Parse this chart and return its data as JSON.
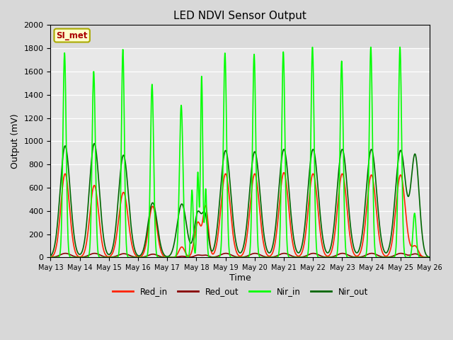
{
  "title": "LED NDVI Sensor Output",
  "xlabel": "Time",
  "ylabel": "Output (mV)",
  "ylim": [
    0,
    2000
  ],
  "xlim": [
    0,
    13
  ],
  "background_color": "#d8d8d8",
  "plot_bg_color": "#e8e8e8",
  "annotation_text": "SI_met",
  "annotation_bg": "#ffffcc",
  "annotation_border": "#aaaa00",
  "annotation_text_color": "#aa0000",
  "x_tick_labels": [
    "May 13",
    "May 14",
    "May 15",
    "May 16",
    "May 17",
    "May 18",
    "May 19",
    "May 20",
    "May 21",
    "May 22",
    "May 23",
    "May 24",
    "May 25",
    "May 26"
  ],
  "x_tick_positions": [
    0,
    1,
    2,
    3,
    4,
    5,
    6,
    7,
    8,
    9,
    10,
    11,
    12,
    13
  ],
  "yticks": [
    0,
    200,
    400,
    600,
    800,
    1000,
    1200,
    1400,
    1600,
    1800,
    2000
  ],
  "legend": [
    "Red_in",
    "Red_out",
    "Nir_in",
    "Nir_out"
  ],
  "legend_colors": [
    "#ff2200",
    "#880000",
    "#00ff00",
    "#006600"
  ],
  "series": {
    "Red_in": {
      "color": "#ff2200",
      "lw": 1.2,
      "zorder": 3
    },
    "Red_out": {
      "color": "#880000",
      "lw": 1.2,
      "zorder": 2
    },
    "Nir_in": {
      "color": "#00ff00",
      "lw": 1.2,
      "zorder": 5
    },
    "Nir_out": {
      "color": "#006600",
      "lw": 1.2,
      "zorder": 4
    }
  }
}
